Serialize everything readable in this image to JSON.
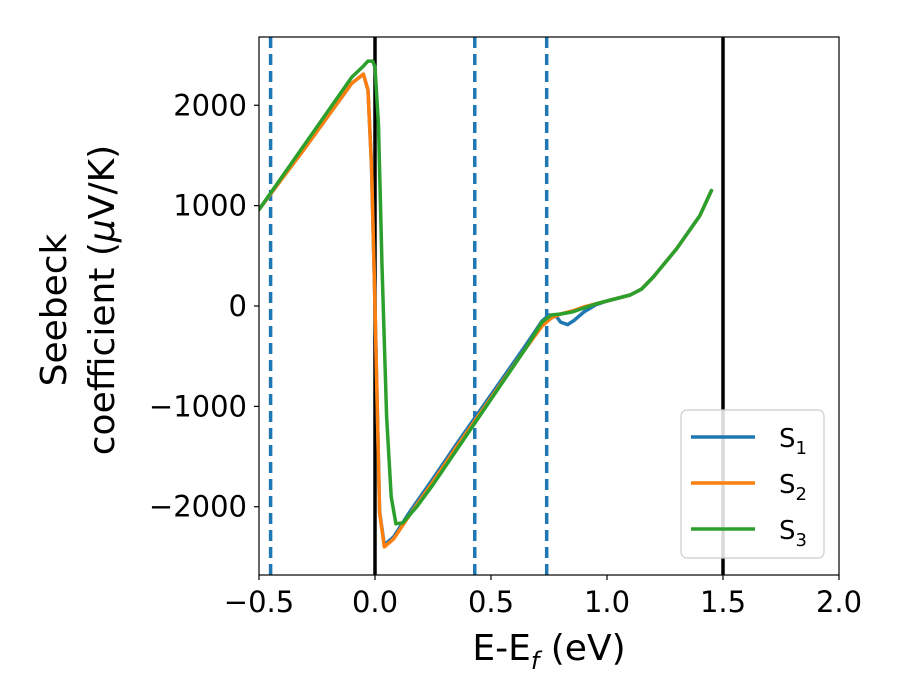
{
  "chart_data": {
    "type": "line",
    "title": "",
    "xlabel": {
      "main": "E-E",
      "sub": "f",
      "unit": " (eV)"
    },
    "ylabel": {
      "line1": "Seebeck",
      "line2": "coefficient  (",
      "mu": "μ",
      "line2_end": "V/K)"
    },
    "xlim": [
      -0.5,
      2.0
    ],
    "ylim": [
      -2680,
      2680
    ],
    "xticks": [
      -0.5,
      0.0,
      0.5,
      1.0,
      1.5,
      2.0
    ],
    "xtick_labels": [
      "−0.5",
      "0.0",
      "0.5",
      "1.0",
      "1.5",
      "2.0"
    ],
    "yticks": [
      2000,
      1000,
      0,
      -1000,
      -2000
    ],
    "ytick_labels": [
      "2000",
      "1000",
      "0",
      "−1000",
      "−2000"
    ],
    "grid": false,
    "legend_position": "lower-right",
    "vlines_solid": [
      0.0,
      1.5
    ],
    "vlines_dashed": [
      -0.45,
      0.43,
      0.74
    ],
    "vline_solid_color": "#000000",
    "vline_dashed_color": "#1f77b4",
    "series": [
      {
        "name": "S",
        "sub": "1",
        "color": "#1f77b4",
        "x": [
          -0.5,
          -0.4,
          -0.3,
          -0.2,
          -0.1,
          -0.05,
          -0.03,
          -0.015,
          0.0,
          0.02,
          0.04,
          0.08,
          0.15,
          0.25,
          0.35,
          0.45,
          0.55,
          0.65,
          0.72,
          0.75,
          0.78,
          0.8,
          0.83,
          0.86,
          0.9,
          0.95,
          1.0,
          1.05,
          1.1,
          1.15,
          1.2,
          1.3,
          1.4,
          1.45
        ],
        "y": [
          960,
          1270,
          1580,
          1900,
          2220,
          2310,
          2150,
          1400,
          0,
          -2050,
          -2380,
          -2300,
          -2050,
          -1720,
          -1380,
          -1050,
          -720,
          -390,
          -150,
          -90,
          -100,
          -160,
          -185,
          -140,
          -60,
          10,
          50,
          80,
          110,
          170,
          290,
          570,
          900,
          1150
        ]
      },
      {
        "name": "S",
        "sub": "2",
        "color": "#ff7f0e",
        "x": [
          -0.5,
          -0.4,
          -0.3,
          -0.2,
          -0.1,
          -0.05,
          -0.03,
          -0.015,
          0.0,
          0.02,
          0.04,
          0.08,
          0.15,
          0.25,
          0.35,
          0.45,
          0.55,
          0.65,
          0.72,
          0.76,
          0.8,
          0.85,
          0.9,
          0.95,
          1.0,
          1.05,
          1.1,
          1.15,
          1.2,
          1.3,
          1.4,
          1.45
        ],
        "y": [
          960,
          1270,
          1580,
          1900,
          2220,
          2310,
          2150,
          1400,
          0,
          -2060,
          -2400,
          -2320,
          -2080,
          -1750,
          -1410,
          -1080,
          -750,
          -420,
          -200,
          -120,
          -80,
          -50,
          -10,
          20,
          50,
          80,
          110,
          170,
          290,
          570,
          900,
          1150
        ]
      },
      {
        "name": "S",
        "sub": "3",
        "color": "#2ca02c",
        "x": [
          -0.5,
          -0.4,
          -0.3,
          -0.2,
          -0.1,
          -0.05,
          -0.03,
          -0.01,
          0.0,
          0.015,
          0.03,
          0.05,
          0.07,
          0.09,
          0.12,
          0.18,
          0.25,
          0.35,
          0.45,
          0.55,
          0.65,
          0.72,
          0.76,
          0.8,
          0.85,
          0.9,
          0.95,
          1.0,
          1.05,
          1.1,
          1.15,
          1.2,
          1.3,
          1.4,
          1.45
        ],
        "y": [
          960,
          1290,
          1620,
          1950,
          2280,
          2390,
          2440,
          2440,
          2380,
          1800,
          400,
          -1100,
          -1900,
          -2170,
          -2160,
          -2000,
          -1780,
          -1440,
          -1100,
          -760,
          -420,
          -160,
          -90,
          -80,
          -60,
          -20,
          20,
          50,
          80,
          110,
          170,
          290,
          570,
          900,
          1150
        ]
      }
    ]
  }
}
